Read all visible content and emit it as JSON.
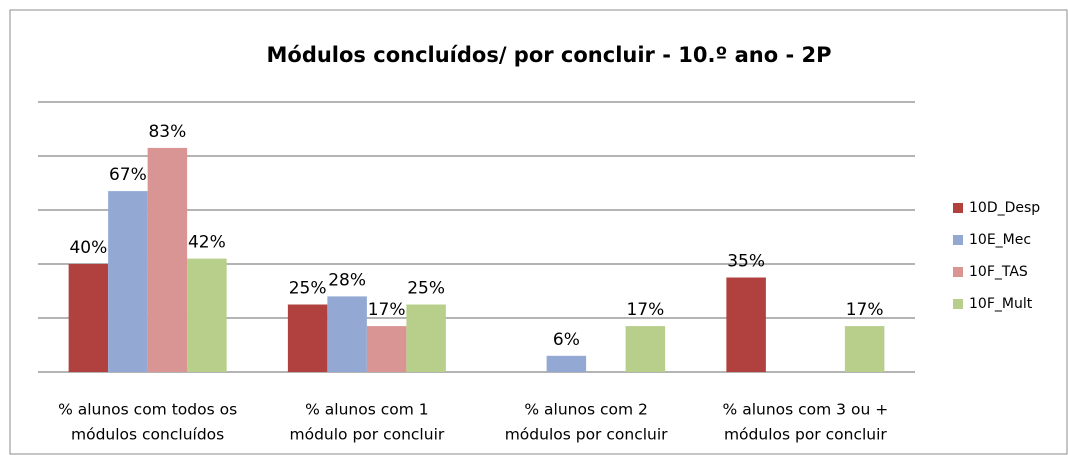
{
  "chart_data": {
    "type": "bar",
    "title": "Módulos concluídos/ por concluir - 10.º ano - 2P",
    "categories": [
      [
        "% alunos com todos os",
        "módulos concluídos"
      ],
      [
        "% alunos com 1",
        "módulo por concluir"
      ],
      [
        "% alunos com 2",
        "módulos por concluir"
      ],
      [
        "% alunos com 3 ou +",
        "módulos por concluir"
      ]
    ],
    "series": [
      {
        "name": "10D_Desp",
        "color": "#b0413e",
        "values": [
          40,
          25,
          null,
          35
        ],
        "value_labels": [
          "40%",
          "25%",
          null,
          "35%"
        ]
      },
      {
        "name": "10E_Mec",
        "color": "#93a9d4",
        "values": [
          67,
          28,
          6,
          null
        ],
        "value_labels": [
          "67%",
          "28%",
          "6%",
          null
        ]
      },
      {
        "name": "10F_TAS",
        "color": "#d99594",
        "values": [
          83,
          17,
          null,
          null
        ],
        "value_labels": [
          "83%",
          "17%",
          null,
          null
        ]
      },
      {
        "name": "10F_Mult",
        "color": "#b7cf8b",
        "values": [
          42,
          25,
          17,
          17
        ],
        "value_labels": [
          "42%",
          "25%",
          "17%",
          "17%"
        ]
      }
    ],
    "ylim": [
      0,
      100
    ],
    "yticks": [
      0,
      20,
      40,
      60,
      80,
      100
    ],
    "grid": true,
    "legend": "right"
  }
}
